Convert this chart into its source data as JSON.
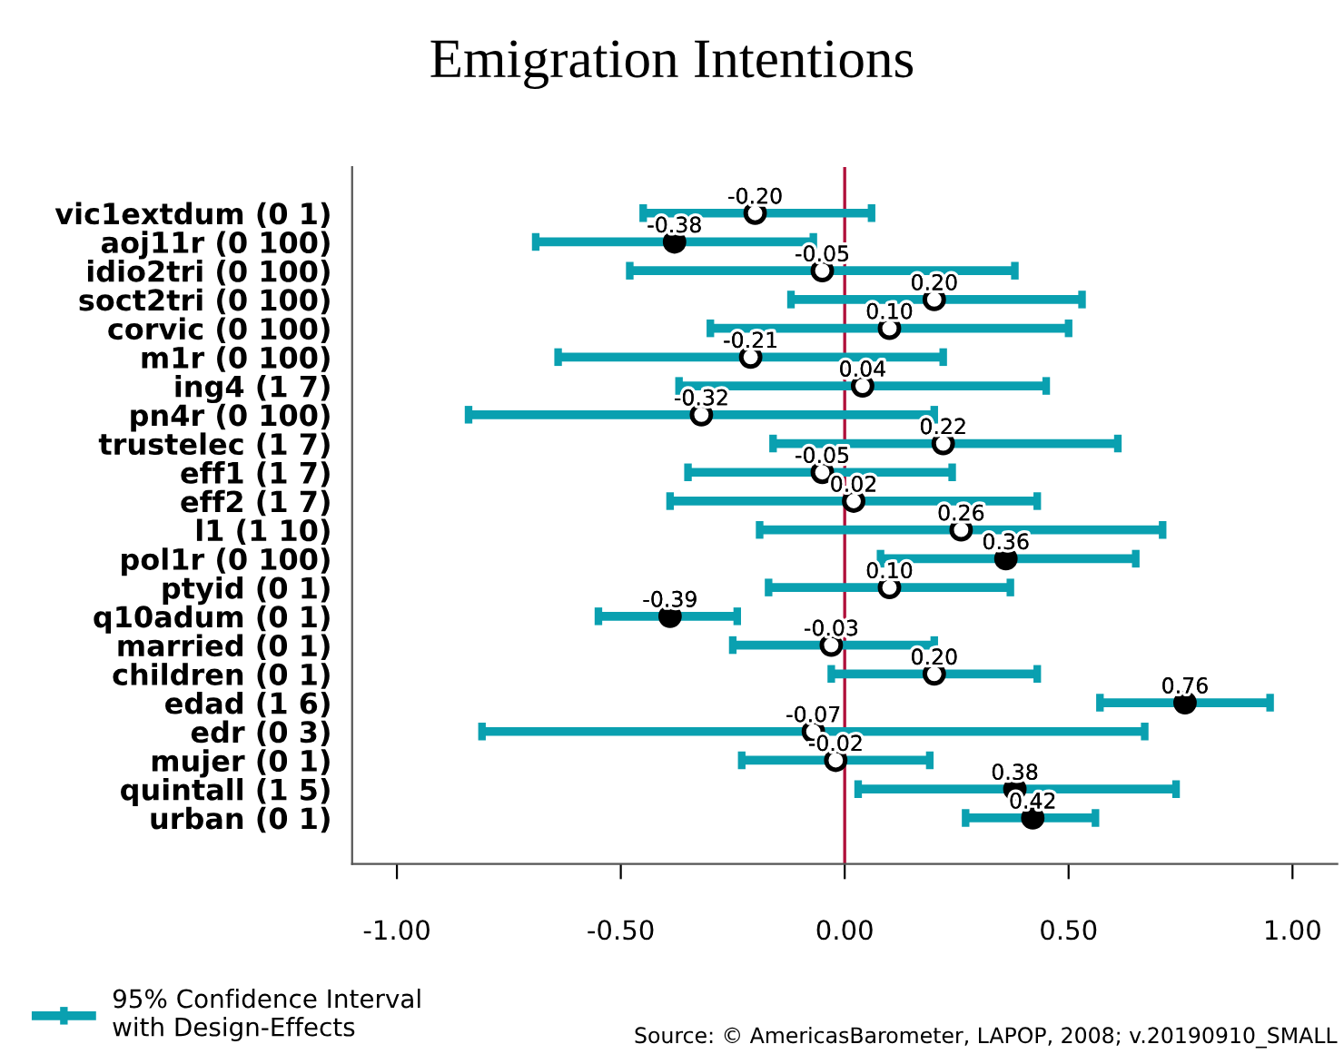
{
  "chart_data": {
    "type": "scatter",
    "title": "Emigration Intentions",
    "orientation": "horizontal",
    "categories": [
      "vic1extdum (0 1)",
      "aoj11r (0 100)",
      "idio2tri (0 100)",
      "soct2tri (0 100)",
      "corvic (0 100)",
      "m1r (0 100)",
      "ing4 (1 7)",
      "pn4r (0 100)",
      "trustelec (1 7)",
      "eff1 (1 7)",
      "eff2 (1 7)",
      "l1 (1 10)",
      "pol1r (0 100)",
      "ptyid (0 1)",
      "q10adum (0 1)",
      "married (0 1)",
      "children (0 1)",
      "edad (1 6)",
      "edr (0 3)",
      "mujer (0 1)",
      "quintall (1 5)",
      "urban (0 1)"
    ],
    "series": [
      {
        "name": "95% Confidence Interval\nwith Design-Effects",
        "color": "#0aa0b0",
        "values": [
          -0.2,
          -0.38,
          -0.05,
          0.2,
          0.1,
          -0.21,
          0.04,
          -0.32,
          0.22,
          -0.05,
          0.02,
          0.26,
          0.36,
          0.1,
          -0.39,
          -0.03,
          0.2,
          0.76,
          -0.07,
          -0.02,
          0.38,
          0.42
        ],
        "colors": [
          "#ffffff",
          "#000000",
          "#ffffff",
          "#ffffff",
          "#ffffff",
          "#ffffff",
          "#ffffff",
          "#ffffff",
          "#ffffff",
          "#ffffff",
          "#ffffff",
          "#ffffff",
          "#000000",
          "#ffffff",
          "#000000",
          "#ffffff",
          "#ffffff",
          "#000000",
          "#ffffff",
          "#ffffff",
          "#000000",
          "#000000"
        ],
        "errors": [
          [
            -0.45,
            0.06
          ],
          [
            -0.69,
            -0.07
          ],
          [
            -0.48,
            0.38
          ],
          [
            -0.12,
            0.53
          ],
          [
            -0.3,
            0.5
          ],
          [
            -0.64,
            0.22
          ],
          [
            -0.37,
            0.45
          ],
          [
            -0.84,
            0.2
          ],
          [
            -0.16,
            0.61
          ],
          [
            -0.35,
            0.24
          ],
          [
            -0.39,
            0.43
          ],
          [
            -0.19,
            0.71
          ],
          [
            0.08,
            0.65
          ],
          [
            -0.17,
            0.37
          ],
          [
            -0.55,
            -0.24
          ],
          [
            -0.25,
            0.2
          ],
          [
            -0.03,
            0.43
          ],
          [
            0.57,
            0.95
          ],
          [
            -0.81,
            0.67
          ],
          [
            -0.23,
            0.19
          ],
          [
            0.03,
            0.74
          ],
          [
            0.27,
            0.56
          ]
        ]
      }
    ],
    "value_labels": [
      "-0.20",
      "-0.38",
      "-0.05",
      "0.20",
      "0.10",
      "-0.21",
      "0.04",
      "-0.32",
      "0.22",
      "-0.05",
      "0.02",
      "0.26",
      "0.36",
      "0.10",
      "-0.39",
      "-0.03",
      "0.20",
      "0.76",
      "-0.07",
      "-0.02",
      "0.38",
      "0.42"
    ],
    "xlim": [
      -1.1,
      1.1
    ],
    "xticks": [
      {
        "value": -1,
        "label": "-1.00"
      },
      {
        "value": -0.5,
        "label": "-0.50"
      },
      {
        "value": 0,
        "label": "0.00"
      },
      {
        "value": 0.5,
        "label": "0.50"
      },
      {
        "value": 1,
        "label": "1.00"
      }
    ],
    "ref_lines": [
      {
        "axis": "x",
        "value": 0,
        "color": "#b0103a"
      }
    ],
    "marker": "circle",
    "grid": false,
    "legend": "bottom left",
    "annotations": [
      "Source: © AmericasBarometer, LAPOP, 2008; v.20190910_SMALL"
    ]
  }
}
